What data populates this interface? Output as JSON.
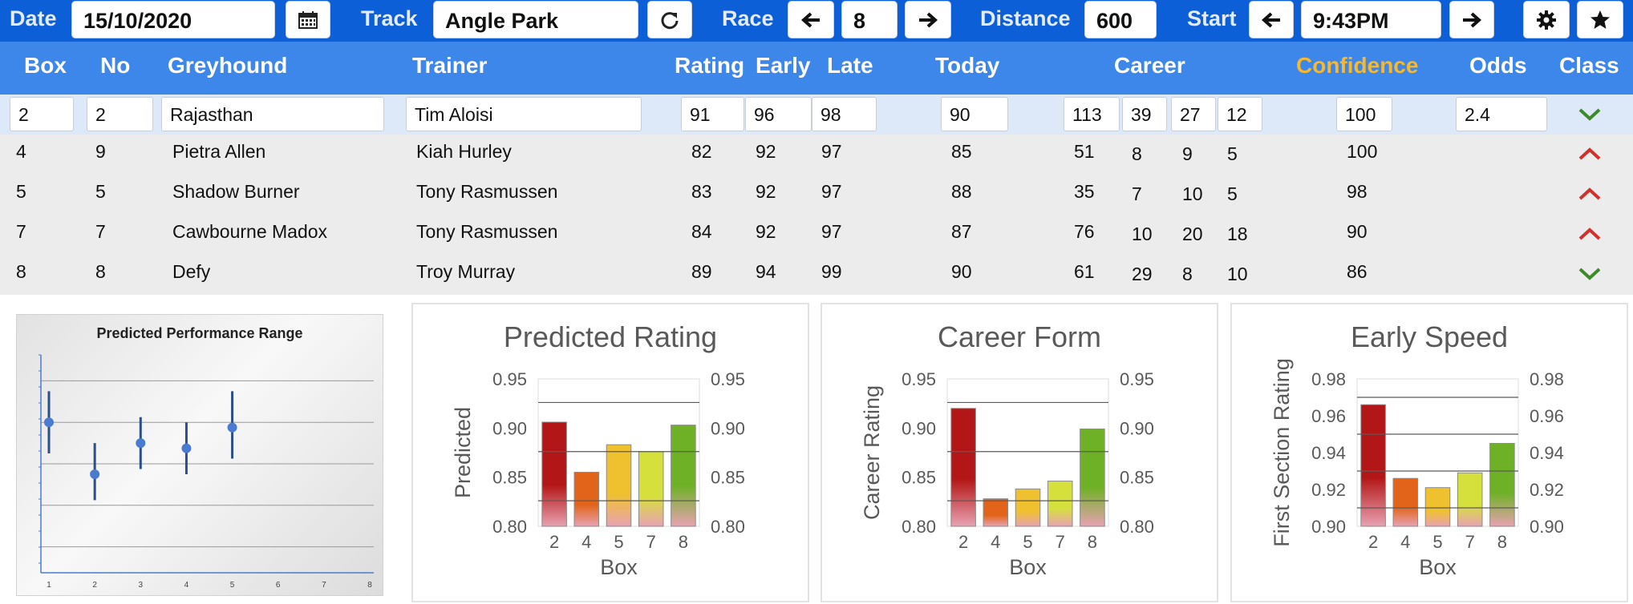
{
  "toolbar": {
    "date_label": "Date",
    "date_value": "15/10/2020",
    "track_label": "Track",
    "track_value": "Angle Park",
    "race_label": "Race",
    "race_value": "8",
    "distance_label": "Distance",
    "distance_value": "600",
    "start_label": "Start",
    "start_value": "9:43PM"
  },
  "columns": [
    "Box",
    "No",
    "Greyhound",
    "Trainer",
    "Rating",
    "Early",
    "Late",
    "Today",
    "Career",
    "Confidence",
    "Odds",
    "Class"
  ],
  "selected_row": {
    "box": "2",
    "no": "2",
    "greyhound": "Rajasthan",
    "trainer": "Tim Aloisi",
    "rating": "91",
    "early": "96",
    "late": "98",
    "today": "90",
    "career": [
      "113",
      "39",
      "27",
      "12"
    ],
    "confidence": "100",
    "odds": "2.4",
    "class": "down"
  },
  "rows": [
    {
      "box": "4",
      "no": "9",
      "greyhound": "Pietra Allen",
      "trainer": "Kiah Hurley",
      "rating": "82",
      "early": "92",
      "late": "97",
      "today": "85",
      "career": [
        "51",
        "8",
        "9",
        "5"
      ],
      "confidence": "100",
      "class": "up"
    },
    {
      "box": "5",
      "no": "5",
      "greyhound": "Shadow Burner",
      "trainer": "Tony Rasmussen",
      "rating": "83",
      "early": "92",
      "late": "97",
      "today": "88",
      "career": [
        "35",
        "7",
        "10",
        "5"
      ],
      "confidence": "98",
      "class": "up"
    },
    {
      "box": "7",
      "no": "7",
      "greyhound": "Cawbourne Madox",
      "trainer": "Tony Rasmussen",
      "rating": "84",
      "early": "92",
      "late": "97",
      "today": "87",
      "career": [
        "76",
        "10",
        "20",
        "18"
      ],
      "confidence": "90",
      "class": "up"
    },
    {
      "box": "8",
      "no": "8",
      "greyhound": "Defy",
      "trainer": "Troy Murray",
      "rating": "89",
      "early": "94",
      "late": "99",
      "today": "90",
      "career": [
        "61",
        "29",
        "8",
        "10"
      ],
      "confidence": "86",
      "class": "down"
    }
  ],
  "colors": {
    "topbar": "#0d5fd7",
    "header": "#3d86ea",
    "confidence_header": "#f5b82e",
    "selected_row": "#dde8f9",
    "rows_bg": "#ececec",
    "chevron_down": "#3e8a2a",
    "chevron_up": "#d0312d"
  },
  "icons": [
    "calendar-icon",
    "refresh-icon",
    "arrow-left-icon",
    "arrow-right-icon",
    "gear-icon",
    "star-icon",
    "chevron-down-icon",
    "chevron-up-icon"
  ],
  "chart_data": [
    {
      "type": "scatter",
      "title": "Predicted Performance Range",
      "x": [
        1,
        2,
        3,
        4,
        5
      ],
      "xticks": [
        "1",
        "2",
        "3",
        "4",
        "5",
        "6",
        "7",
        "8"
      ],
      "points": [
        {
          "x": 1,
          "y": 0.905
        },
        {
          "x": 2,
          "y": 0.855
        },
        {
          "x": 3,
          "y": 0.885
        },
        {
          "x": 4,
          "y": 0.88
        },
        {
          "x": 5,
          "y": 0.9
        }
      ],
      "ranges": [
        [
          0.875,
          0.935
        ],
        [
          0.83,
          0.885
        ],
        [
          0.86,
          0.91
        ],
        [
          0.855,
          0.905
        ],
        [
          0.87,
          0.935
        ]
      ],
      "ylim": [
        0.76,
        0.97
      ],
      "grid": true
    },
    {
      "type": "bar",
      "title": "Predicted Rating",
      "xlabel": "Box",
      "ylabel": "Predicted",
      "categories": [
        "2",
        "4",
        "5",
        "7",
        "8"
      ],
      "values": [
        0.906,
        0.855,
        0.883,
        0.876,
        0.903
      ],
      "ylim": [
        0.8,
        0.95
      ],
      "yticks": [
        "0.80",
        "0.85",
        "0.90",
        "0.95"
      ],
      "colors": [
        "#b31616",
        "#e2641a",
        "#f0c12e",
        "#d6e03c",
        "#6fb126"
      ],
      "refs": [
        0.826,
        0.876,
        0.926
      ]
    },
    {
      "type": "bar",
      "title": "Career Form",
      "xlabel": "Box",
      "ylabel": "Career Rating",
      "categories": [
        "2",
        "4",
        "5",
        "7",
        "8"
      ],
      "values": [
        0.92,
        0.828,
        0.838,
        0.846,
        0.899
      ],
      "ylim": [
        0.8,
        0.95
      ],
      "yticks": [
        "0.80",
        "0.85",
        "0.90",
        "0.95"
      ],
      "colors": [
        "#b31616",
        "#e2641a",
        "#f0c12e",
        "#d6e03c",
        "#6fb126"
      ],
      "refs": [
        0.826,
        0.876,
        0.926
      ]
    },
    {
      "type": "bar",
      "title": "Early Speed",
      "xlabel": "Box",
      "ylabel": "First Section Rating",
      "categories": [
        "2",
        "4",
        "5",
        "7",
        "8"
      ],
      "values": [
        0.966,
        0.926,
        0.921,
        0.929,
        0.945
      ],
      "ylim": [
        0.9,
        0.98
      ],
      "yticks": [
        "0.90",
        "0.92",
        "0.94",
        "0.96",
        "0.98"
      ],
      "colors": [
        "#b31616",
        "#e2641a",
        "#f0c12e",
        "#d6e03c",
        "#6fb126"
      ],
      "refs": [
        0.91,
        0.93,
        0.95,
        0.97
      ]
    }
  ]
}
